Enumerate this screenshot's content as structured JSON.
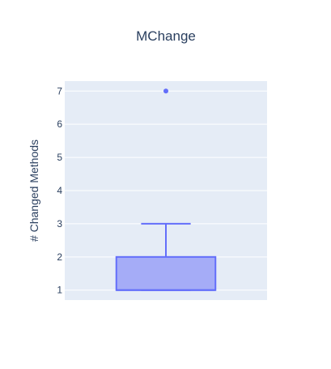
{
  "chart_data": {
    "type": "box",
    "title": "MChange",
    "xlabel": "",
    "ylabel": "# Changed Methods",
    "ylim": [
      0.7,
      7.3
    ],
    "yticks": [
      1,
      2,
      3,
      4,
      5,
      6,
      7
    ],
    "grid": true,
    "series": [
      {
        "q1": 1,
        "median": 1,
        "q3": 2,
        "lower_whisker": 1,
        "upper_whisker": 3,
        "outliers": [
          7
        ]
      }
    ]
  },
  "colors": {
    "plot_background": "#e5ecf6",
    "grid": "#ffffff",
    "box_fill": "#a5acf7",
    "box_line": "#636efa",
    "text": "#2a3f5f"
  }
}
